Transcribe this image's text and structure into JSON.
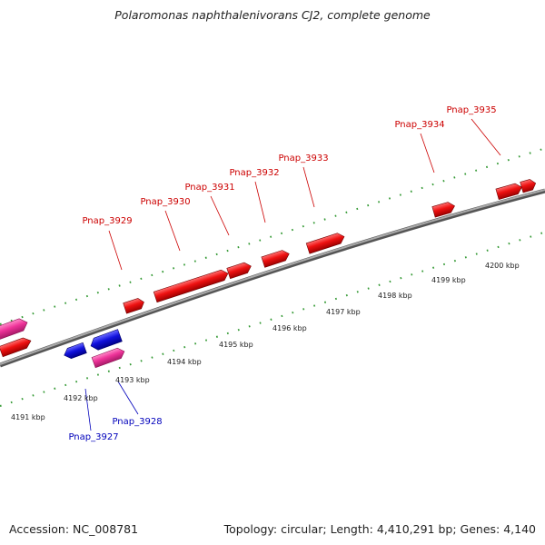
{
  "title": "Polaromonas naphthalenivorans CJ2, complete genome",
  "footer": {
    "accession": "Accession: NC_008781",
    "stats": "Topology: circular; Length: 4,410,291 bp; Genes: 4,140"
  },
  "colors": {
    "forward_gene": "#ee1111",
    "reverse_gene": "#1111dd",
    "other_gene": "#ee3399",
    "forward_label": "#cc0000",
    "reverse_label": "#0000bb",
    "backbone": "#888888",
    "tick": "#339933"
  },
  "kbp_labels": [
    "4191 kbp",
    "4192 kbp",
    "4193 kbp",
    "4194 kbp",
    "4195 kbp",
    "4196 kbp",
    "4197 kbp",
    "4198 kbp",
    "4199 kbp",
    "4200 kbp"
  ],
  "forward_genes": [
    "Pnap_3929",
    "Pnap_3930",
    "Pnap_3931",
    "Pnap_3932",
    "Pnap_3933",
    "Pnap_3934",
    "Pnap_3935"
  ],
  "reverse_genes": [
    "Pnap_3927",
    "Pnap_3928"
  ]
}
